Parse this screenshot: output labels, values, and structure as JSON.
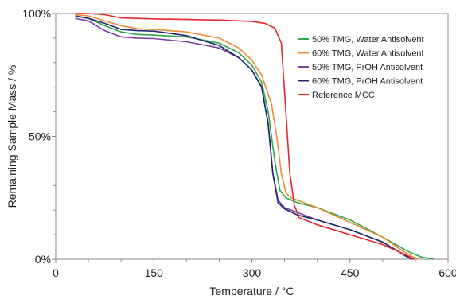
{
  "chart_data": {
    "type": "line",
    "title": "",
    "xlabel": "Temperature / °C",
    "ylabel": "Remaining Sample Mass / %",
    "xlim": [
      0,
      600
    ],
    "ylim": [
      0,
      100
    ],
    "x_ticks": [
      0,
      150,
      300,
      450,
      600
    ],
    "x_tick_labels": [
      "0",
      "150",
      "300",
      "450",
      "600"
    ],
    "y_ticks": [
      0,
      50,
      100
    ],
    "y_tick_labels": [
      "0%",
      "50%",
      "100%"
    ],
    "grid": false,
    "legend_position": "top-right",
    "series": [
      {
        "name": "50% TMG, Water Antisolvent",
        "color": "#2ca84a",
        "points": [
          [
            30,
            99
          ],
          [
            50,
            98
          ],
          [
            75,
            95
          ],
          [
            100,
            92.5
          ],
          [
            125,
            91.5
          ],
          [
            150,
            91.2
          ],
          [
            200,
            90.5
          ],
          [
            250,
            88
          ],
          [
            280,
            84
          ],
          [
            300,
            79
          ],
          [
            315,
            72
          ],
          [
            325,
            60
          ],
          [
            335,
            40
          ],
          [
            343,
            28
          ],
          [
            352,
            25
          ],
          [
            370,
            23
          ],
          [
            400,
            21
          ],
          [
            450,
            16
          ],
          [
            500,
            9
          ],
          [
            540,
            3
          ],
          [
            560,
            0.8
          ],
          [
            578,
            0
          ]
        ]
      },
      {
        "name": "60% TMG, Water Antisolvent",
        "color": "#ee8a32",
        "points": [
          [
            30,
            99.5
          ],
          [
            50,
            99
          ],
          [
            75,
            97
          ],
          [
            100,
            95
          ],
          [
            125,
            93.8
          ],
          [
            150,
            93.5
          ],
          [
            200,
            92.5
          ],
          [
            250,
            90
          ],
          [
            280,
            86
          ],
          [
            300,
            81
          ],
          [
            315,
            75
          ],
          [
            330,
            63
          ],
          [
            338,
            50
          ],
          [
            345,
            35
          ],
          [
            352,
            27
          ],
          [
            360,
            25
          ],
          [
            400,
            21
          ],
          [
            450,
            15
          ],
          [
            500,
            9
          ],
          [
            530,
            3.5
          ],
          [
            548,
            0.7
          ],
          [
            555,
            0
          ]
        ]
      },
      {
        "name": "50% TMG, PrOH Antisolvent",
        "color": "#7b3fa6",
        "points": [
          [
            30,
            98
          ],
          [
            50,
            97
          ],
          [
            75,
            93
          ],
          [
            100,
            90.5
          ],
          [
            125,
            90
          ],
          [
            150,
            89.8
          ],
          [
            200,
            88.5
          ],
          [
            250,
            86
          ],
          [
            280,
            82
          ],
          [
            300,
            77
          ],
          [
            315,
            70
          ],
          [
            325,
            55
          ],
          [
            332,
            35
          ],
          [
            340,
            24
          ],
          [
            350,
            21
          ],
          [
            370,
            19
          ],
          [
            400,
            16
          ],
          [
            450,
            12
          ],
          [
            500,
            7
          ],
          [
            525,
            3
          ],
          [
            540,
            0.8
          ],
          [
            548,
            0
          ]
        ]
      },
      {
        "name": "60% TMG, PrOH Antisolvent",
        "color": "#1a2a6c",
        "points": [
          [
            30,
            99
          ],
          [
            50,
            98
          ],
          [
            75,
            96
          ],
          [
            100,
            93.5
          ],
          [
            125,
            93
          ],
          [
            150,
            92.8
          ],
          [
            200,
            91
          ],
          [
            250,
            87
          ],
          [
            280,
            82
          ],
          [
            300,
            77
          ],
          [
            315,
            70
          ],
          [
            325,
            55
          ],
          [
            332,
            35
          ],
          [
            340,
            23
          ],
          [
            350,
            20.5
          ],
          [
            370,
            18
          ],
          [
            400,
            16
          ],
          [
            450,
            12
          ],
          [
            500,
            7
          ],
          [
            525,
            3
          ],
          [
            538,
            0.8
          ],
          [
            545,
            0
          ]
        ]
      },
      {
        "name": "Reference MCC",
        "color": "#e8262a",
        "points": [
          [
            30,
            100
          ],
          [
            50,
            100
          ],
          [
            75,
            99.5
          ],
          [
            100,
            98.2
          ],
          [
            150,
            97.8
          ],
          [
            250,
            97.3
          ],
          [
            300,
            96.8
          ],
          [
            320,
            96
          ],
          [
            335,
            94
          ],
          [
            345,
            88
          ],
          [
            352,
            60
          ],
          [
            358,
            35
          ],
          [
            365,
            22
          ],
          [
            372,
            17
          ],
          [
            400,
            14
          ],
          [
            450,
            10
          ],
          [
            500,
            6
          ],
          [
            525,
            3
          ],
          [
            540,
            1.2
          ],
          [
            548,
            0
          ]
        ]
      }
    ]
  }
}
